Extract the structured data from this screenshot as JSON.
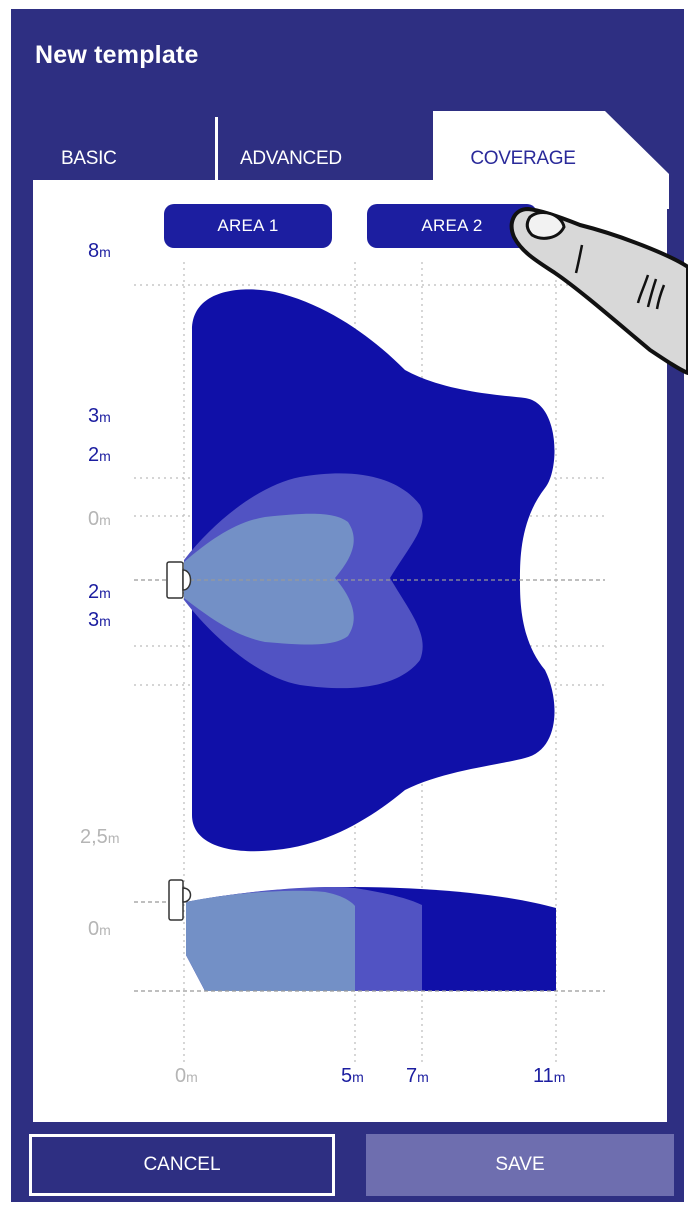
{
  "header": {
    "title": "New template"
  },
  "tabs": [
    {
      "label": "BASIC",
      "active": false
    },
    {
      "label": "ADVANCED",
      "active": false
    },
    {
      "label": "COVERAGE",
      "active": true
    }
  ],
  "area_buttons": [
    {
      "label": "AREA 1"
    },
    {
      "label": "AREA 2"
    }
  ],
  "top_view": {
    "y_labels": [
      {
        "value": "8",
        "unit": "m"
      },
      {
        "value": "3",
        "unit": "m"
      },
      {
        "value": "2",
        "unit": "m"
      },
      {
        "value": "0",
        "unit": "m"
      },
      {
        "value": "2",
        "unit": "m"
      },
      {
        "value": "3",
        "unit": "m"
      }
    ]
  },
  "side_view": {
    "y_labels": [
      {
        "value": "2,5",
        "unit": "m"
      },
      {
        "value": "0",
        "unit": "m"
      }
    ]
  },
  "x_labels": [
    {
      "value": "0",
      "unit": "m"
    },
    {
      "value": "5",
      "unit": "m"
    },
    {
      "value": "7",
      "unit": "m"
    },
    {
      "value": "11",
      "unit": "m"
    }
  ],
  "footer": {
    "cancel_label": "CANCEL",
    "save_label": "SAVE"
  },
  "colors": {
    "background": "#2e2f82",
    "zone_outer": "#1010a8",
    "zone_middle": "#5153c3",
    "zone_inner": "#7390c6",
    "label_dark": "#1c1ea0",
    "label_grey": "#b5b5b5",
    "save_button": "#6e6eaf"
  },
  "icons": {
    "detector": "detector-icon",
    "hand": "pointing-hand-icon"
  }
}
